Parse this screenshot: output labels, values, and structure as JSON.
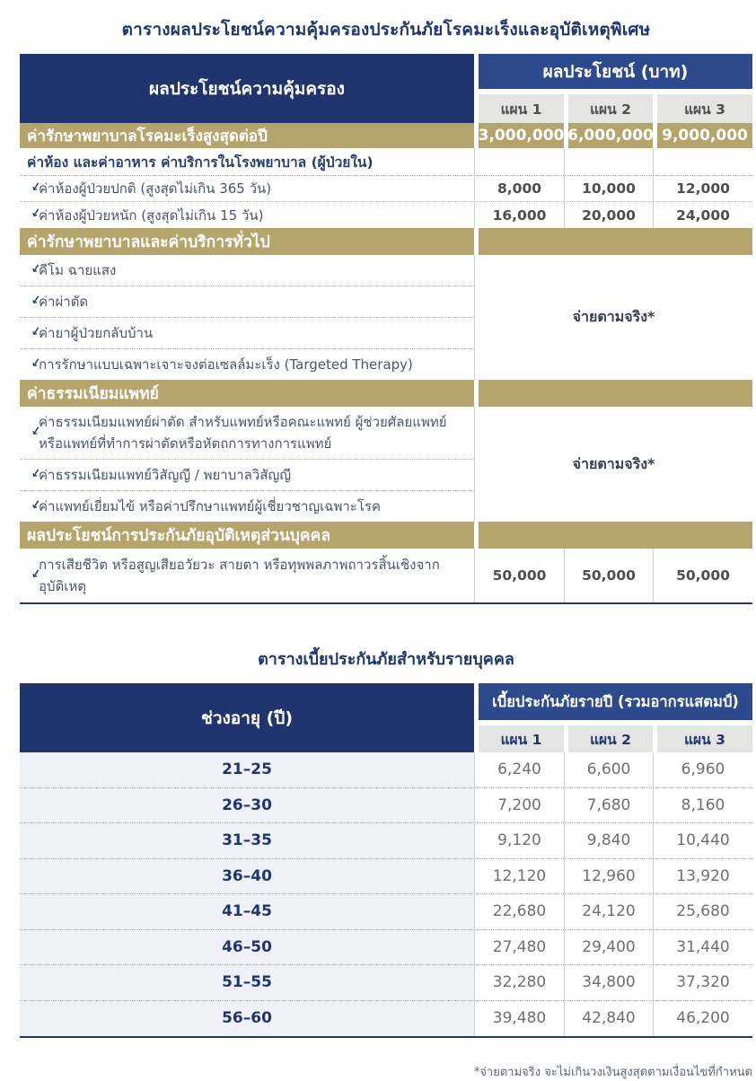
{
  "colors": {
    "navy": "#20356e",
    "band_blue": "#2d4a8d",
    "gold": "#b5a56d",
    "header_gray": "#e4e4e3"
  },
  "benefits_table": {
    "title": "ตารางผลประโยชน์ความคุ้มครองประกันภัยโรคมะเร็งและอุบัติเหตุพิเศษ",
    "header": {
      "left": "ผลประโยชน์ความคุ้มครอง",
      "group": "ผลประโยชน์ (บาท)",
      "plans": [
        "แผน 1",
        "แผน 2",
        "แผน 3"
      ]
    },
    "rows": [
      {
        "type": "highlight",
        "label": "ค่ารักษาพยาบาลโรคมะเร็งสูงสุดต่อปี",
        "values": [
          "3,000,000",
          "6,000,000",
          "9,000,000"
        ]
      },
      {
        "type": "subtitle",
        "label": "ค่าห้อง และค่าอาหาร ค่าบริการในโรงพยาบาล (ผู้ป่วยใน)"
      },
      {
        "type": "item",
        "label": "ค่าห้องผู้ป่วยปกติ (สูงสุดไม่เกิน 365 วัน)",
        "values": [
          "8,000",
          "10,000",
          "12,000"
        ]
      },
      {
        "type": "item",
        "label": "ค่าห้องผู้ป่วยหนัก (สูงสุดไม่เกิน 15 วัน)",
        "values": [
          "16,000",
          "20,000",
          "24,000"
        ]
      },
      {
        "type": "section",
        "label": "ค่ารักษาพยาบาลและค่าบริการทั่วไป"
      },
      {
        "type": "group",
        "items": [
          "คีโม ฉายแสง",
          "ค่าผ่าตัด",
          "ค่ายาผู้ป่วยกลับบ้าน",
          "การรักษาแบบเฉพาะเจาะจงต่อเซลล์มะเร็ง (Targeted Therapy)"
        ],
        "merged_value": "จ่ายตามจริง*"
      },
      {
        "type": "section",
        "label": "ค่าธรรมเนียมแพทย์"
      },
      {
        "type": "group",
        "items": [
          "ค่าธรรมเนียมแพทย์ผ่าตัด สำหรับแพทย์หรือคณะแพทย์ ผู้ช่วยศัลยแพทย์ หรือแพทย์ที่ทำการผ่าตัดหรือหัตถการทางการแพทย์",
          "ค่าธรรมเนียมแพทย์วิสัญญี / พยาบาลวิสัญญี",
          "ค่าแพทย์เยี่ยมไข้ หรือค่าปรึกษาแพทย์ผู้เชี่ยวชาญเฉพาะโรค"
        ],
        "merged_value": "จ่ายตามจริง*"
      },
      {
        "type": "section",
        "label": "ผลประโยชน์การประกันภัยอุบัติเหตุส่วนบุคคล"
      },
      {
        "type": "item",
        "accident": true,
        "label": "การเสียชีวิต หรือสูญเสียอวัยวะ สายตา หรือทุพพลภาพถาวรสิ้นเชิงจากอุบัติเหตุ",
        "values": [
          "50,000",
          "50,000",
          "50,000"
        ]
      }
    ]
  },
  "premium_table": {
    "title": "ตารางเบี้ยประกันภัยสำหรับรายบุคคล",
    "header": {
      "left": "ช่วงอายุ (ปี)",
      "group": "เบี้ยประกันภัยรายปี (รวมอากรแสตมป์)",
      "plans": [
        "แผน 1",
        "แผน 2",
        "แผน 3"
      ]
    },
    "rows": [
      {
        "age": "21–25",
        "values": [
          "6,240",
          "6,600",
          "6,960"
        ]
      },
      {
        "age": "26–30",
        "values": [
          "7,200",
          "7,680",
          "8,160"
        ]
      },
      {
        "age": "31–35",
        "values": [
          "9,120",
          "9,840",
          "10,440"
        ]
      },
      {
        "age": "36–40",
        "values": [
          "12,120",
          "12,960",
          "13,920"
        ]
      },
      {
        "age": "41–45",
        "values": [
          "22,680",
          "24,120",
          "25,680"
        ]
      },
      {
        "age": "46–50",
        "values": [
          "27,480",
          "29,400",
          "31,440"
        ]
      },
      {
        "age": "51–55",
        "values": [
          "32,280",
          "34,800",
          "37,320"
        ]
      },
      {
        "age": "56–60",
        "values": [
          "39,480",
          "42,840",
          "46,200"
        ]
      }
    ]
  },
  "footnote": "*จ่ายตามจริง จะไม่เกินวงเงินสูงสุดตามเงื่อนไขที่กำหนด",
  "icons": {
    "bullet": "arrow-down-left-icon",
    "bullet_glyph": "↙"
  }
}
